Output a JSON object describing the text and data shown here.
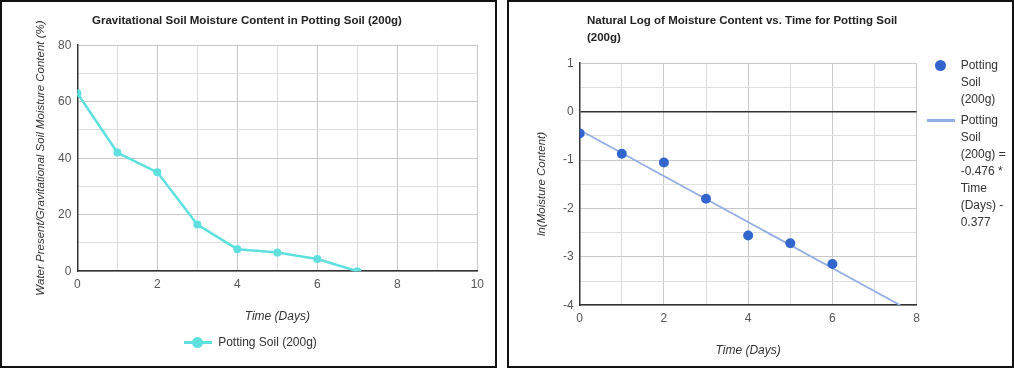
{
  "chart_data": [
    {
      "type": "line",
      "title": "Gravitational Soil Moisture Content in Potting Soil (200g)",
      "xlabel": "Time (Days)",
      "ylabel": "Water Present/Gravitational Soil Moisture Content (%)",
      "x": [
        0,
        1,
        2,
        3,
        4,
        5,
        6,
        7
      ],
      "series": [
        {
          "name": "Potting Soil (200g)",
          "color": "#5fe0df",
          "values": [
            63,
            42,
            35,
            16.5,
            7.8,
            6.6,
            4.3,
            0
          ]
        }
      ],
      "xlim": [
        0,
        10
      ],
      "xticks": [
        0,
        {
          "value": 1,
          "label": null
        },
        2,
        {
          "value": 3,
          "label": null
        },
        4,
        {
          "value": 5,
          "label": null
        },
        6,
        {
          "value": 7,
          "label": null
        },
        8,
        {
          "value": 9,
          "label": null
        },
        10
      ],
      "ylim": [
        0,
        80
      ],
      "yticks": [
        0,
        {
          "value": 10,
          "label": null
        },
        20,
        {
          "value": 30,
          "label": null
        },
        40,
        {
          "value": 50,
          "label": null
        },
        60,
        {
          "value": 70,
          "label": null
        },
        80
      ],
      "grid": true,
      "legend": "bottom",
      "marker": "circle"
    },
    {
      "type": "scatter",
      "title": "Natural Log of Moisture Content vs. Time for Potting Soil (200g)",
      "xlabel": "Time (Days)",
      "ylabel": "ln(Moisture Content)",
      "x": [
        0,
        1,
        2,
        3,
        4,
        5,
        6
      ],
      "series": [
        {
          "name": "Potting Soil (200g)",
          "color": "#3366cc",
          "values": [
            -0.45,
            -0.87,
            -1.05,
            -1.8,
            -2.56,
            -2.72,
            -3.15
          ]
        },
        {
          "type": "line",
          "name": "Potting Soil (200g) = -0.476 * Time (Days) - 0.377",
          "color": "#93aee3",
          "x": [
            0,
            7.61
          ],
          "values": [
            -0.38,
            -4
          ],
          "marker": "none"
        }
      ],
      "xlim": [
        0,
        8
      ],
      "xticks": [
        0,
        {
          "value": 1,
          "label": null
        },
        2,
        {
          "value": 3,
          "label": null
        },
        4,
        {
          "value": 5,
          "label": null
        },
        6,
        {
          "value": 7,
          "label": null
        },
        8
      ],
      "ylim": [
        -4,
        1
      ],
      "yticks": [
        -4,
        {
          "value": -3.5,
          "label": null
        },
        -3,
        {
          "value": -2.5,
          "label": null
        },
        -2,
        {
          "value": -1.5,
          "label": null
        },
        -1,
        {
          "value": -0.5,
          "label": null
        },
        0,
        {
          "value": 0.5,
          "label": null
        },
        1
      ],
      "grid": true,
      "legend": "right",
      "marker": "circle"
    }
  ]
}
